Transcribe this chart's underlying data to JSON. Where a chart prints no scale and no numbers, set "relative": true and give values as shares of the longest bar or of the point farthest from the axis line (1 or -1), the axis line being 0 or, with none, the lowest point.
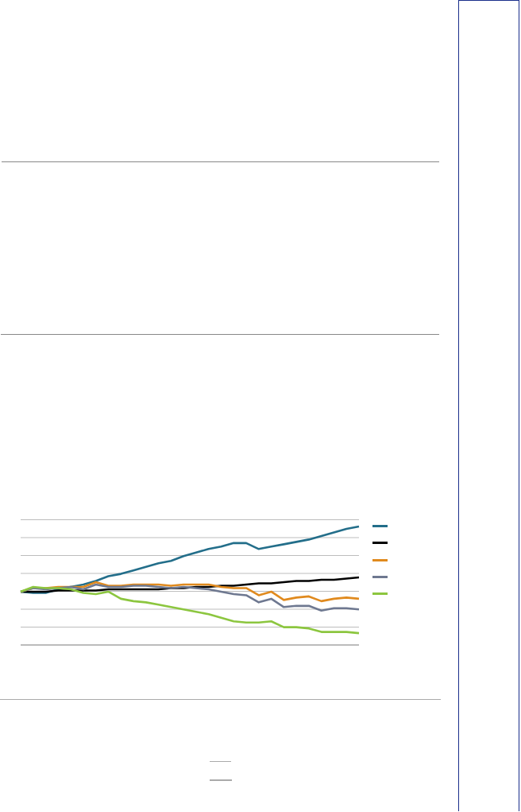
{
  "chart_data": {
    "type": "line",
    "relative": true,
    "grid": "y",
    "marker": "none",
    "line_style": "solid",
    "categories": [
      null,
      null,
      null,
      null,
      null,
      null,
      null,
      null,
      null,
      null,
      null,
      null,
      null,
      null,
      null,
      null,
      null,
      null,
      null,
      null,
      null,
      null,
      null,
      null,
      null,
      null,
      null,
      null
    ],
    "series": [
      {
        "color": "#236e8a",
        "values": [
          0.45,
          0.44,
          0.44,
          0.47,
          0.49,
          0.51,
          0.54,
          0.58,
          0.6,
          0.63,
          0.66,
          0.69,
          0.71,
          0.75,
          0.78,
          0.81,
          0.83,
          0.86,
          0.86,
          0.81,
          0.83,
          0.85,
          0.87,
          0.89,
          0.92,
          0.95,
          0.98,
          1
        ]
      },
      {
        "color": "#000000",
        "values": [
          0.45,
          0.45,
          0.45,
          0.46,
          0.46,
          0.46,
          0.46,
          0.47,
          0.47,
          0.47,
          0.47,
          0.47,
          0.48,
          0.48,
          0.49,
          0.49,
          0.5,
          0.5,
          0.51,
          0.52,
          0.52,
          0.53,
          0.54,
          0.54,
          0.55,
          0.55,
          0.56,
          0.57
        ]
      },
      {
        "color": "#e08a1e",
        "values": [
          0.45,
          0.48,
          0.48,
          0.49,
          0.49,
          0.49,
          0.53,
          0.5,
          0.5,
          0.51,
          0.51,
          0.51,
          0.5,
          0.51,
          0.51,
          0.51,
          0.49,
          0.48,
          0.48,
          0.42,
          0.45,
          0.38,
          0.4,
          0.41,
          0.37,
          0.39,
          0.4,
          0.39
        ]
      },
      {
        "color": "#6e7890",
        "values": [
          0.45,
          0.48,
          0.47,
          0.48,
          0.49,
          0.47,
          0.51,
          0.49,
          0.49,
          0.5,
          0.5,
          0.49,
          0.48,
          0.49,
          0.48,
          0.47,
          0.45,
          0.43,
          0.42,
          0.36,
          0.39,
          0.32,
          0.33,
          0.33,
          0.29,
          0.31,
          0.31,
          0.3
        ]
      },
      {
        "color": "#8cc63f",
        "values": [
          0.45,
          0.49,
          0.48,
          0.48,
          0.47,
          0.44,
          0.43,
          0.45,
          0.39,
          0.37,
          0.36,
          0.34,
          0.32,
          0.3,
          0.28,
          0.26,
          0.23,
          0.2,
          0.19,
          0.19,
          0.2,
          0.15,
          0.15,
          0.14,
          0.11,
          0.11,
          0.11,
          0.1
        ]
      }
    ]
  }
}
